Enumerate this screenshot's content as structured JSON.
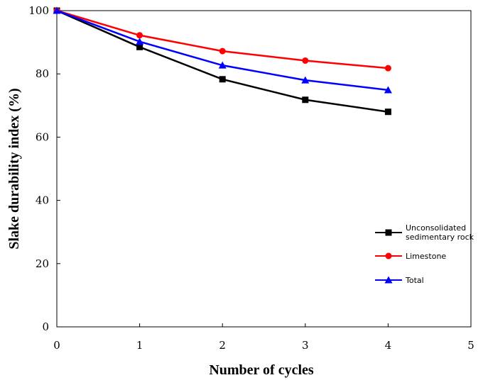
{
  "chart_data": {
    "type": "line",
    "xlabel": "Number of cycles",
    "ylabel": "Slake durability index (%)",
    "xlim": [
      0,
      5
    ],
    "ylim": [
      0,
      100
    ],
    "xticks": [
      0,
      1,
      2,
      3,
      4,
      5
    ],
    "yticks": [
      0,
      20,
      40,
      60,
      80,
      100
    ],
    "grid": false,
    "legend_position": "right",
    "x": [
      0,
      1,
      2,
      3,
      4
    ],
    "series": [
      {
        "name": "Unconsolidated sedimentary rock",
        "name_lines": [
          "Unconsolidated",
          "sedimentary rock"
        ],
        "values": [
          100,
          88.5,
          78.3,
          71.8,
          68.0
        ],
        "color": "#000000",
        "marker": "square"
      },
      {
        "name": "Limestone",
        "name_lines": [
          "Limestone"
        ],
        "values": [
          100,
          92.2,
          87.2,
          84.2,
          81.8
        ],
        "color": "#ff0000",
        "marker": "circle"
      },
      {
        "name": "Total",
        "name_lines": [
          "Total"
        ],
        "values": [
          100,
          90.2,
          82.7,
          78.0,
          74.9
        ],
        "color": "#0000ff",
        "marker": "triangle"
      }
    ]
  }
}
